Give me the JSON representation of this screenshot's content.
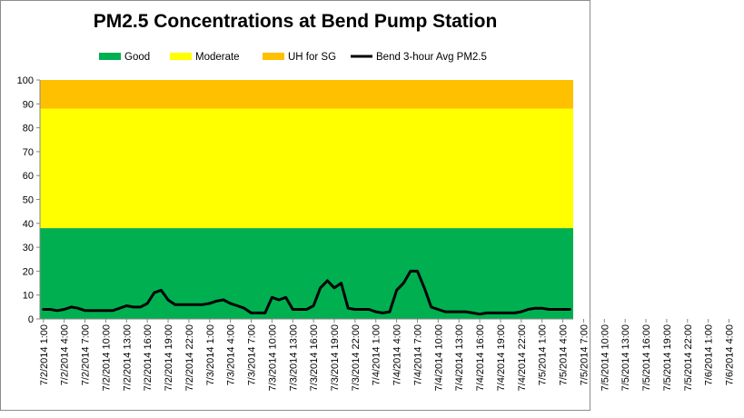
{
  "chart_data": {
    "type": "area",
    "title": "PM2.5 Concentrations at Bend Pump Station",
    "ylim": [
      0,
      100
    ],
    "yticks": [
      0,
      10,
      20,
      30,
      40,
      50,
      60,
      70,
      80,
      90,
      100
    ],
    "grid": false,
    "legend_position": "top",
    "bands": [
      {
        "name": "Good",
        "from": 0,
        "to": 38,
        "color": "#00b050"
      },
      {
        "name": "Moderate",
        "from": 38,
        "to": 88,
        "color": "#ffff00"
      },
      {
        "name": "UH for SG",
        "from": 88,
        "to": 100,
        "color": "#ffc000"
      }
    ],
    "xtick_labels": [
      "7/2/2014 1:00",
      "7/2/2014 4:00",
      "7/2/2014 7:00",
      "7/2/2014 10:00",
      "7/2/2014 13:00",
      "7/2/2014 16:00",
      "7/2/2014 19:00",
      "7/2/2014 22:00",
      "7/3/2014 1:00",
      "7/3/2014 4:00",
      "7/3/2014 7:00",
      "7/3/2014 10:00",
      "7/3/2014 13:00",
      "7/3/2014 16:00",
      "7/3/2014 19:00",
      "7/3/2014 22:00",
      "7/4/2014 1:00",
      "7/4/2014 4:00",
      "7/4/2014 7:00",
      "7/4/2014 10:00",
      "7/4/2014 13:00",
      "7/4/2014 16:00",
      "7/4/2014 19:00",
      "7/4/2014 22:00",
      "7/5/2014 1:00",
      "7/5/2014 4:00",
      "7/5/2014 7:00",
      "7/5/2014 10:00",
      "7/5/2014 13:00",
      "7/5/2014 16:00",
      "7/5/2014 19:00",
      "7/5/2014 22:00",
      "7/6/2014 1:00",
      "7/6/2014 4:00"
    ],
    "series": [
      {
        "name": "Bend 3-hour Avg PM2.5",
        "color": "#000000",
        "values": [
          4,
          4,
          3.5,
          4,
          5,
          4.5,
          3.5,
          3.5,
          3.5,
          3.5,
          3.5,
          4.5,
          5.5,
          5,
          5,
          6.5,
          11,
          12,
          8,
          6,
          6,
          6,
          6,
          6,
          6.5,
          7.5,
          8,
          6.5,
          5.5,
          4.5,
          2.5,
          2.5,
          2.5,
          9,
          8,
          9,
          4,
          4,
          4,
          5.5,
          13,
          16,
          13,
          15,
          4.5,
          4,
          4,
          4,
          3,
          2.5,
          3,
          12,
          15,
          20,
          20,
          13,
          5,
          4,
          3,
          3,
          3,
          3,
          2.5,
          2,
          2.5,
          2.5,
          2.5,
          2.5,
          2.5,
          3,
          4,
          4.5,
          4.5,
          4,
          4,
          4,
          4
        ]
      }
    ]
  }
}
